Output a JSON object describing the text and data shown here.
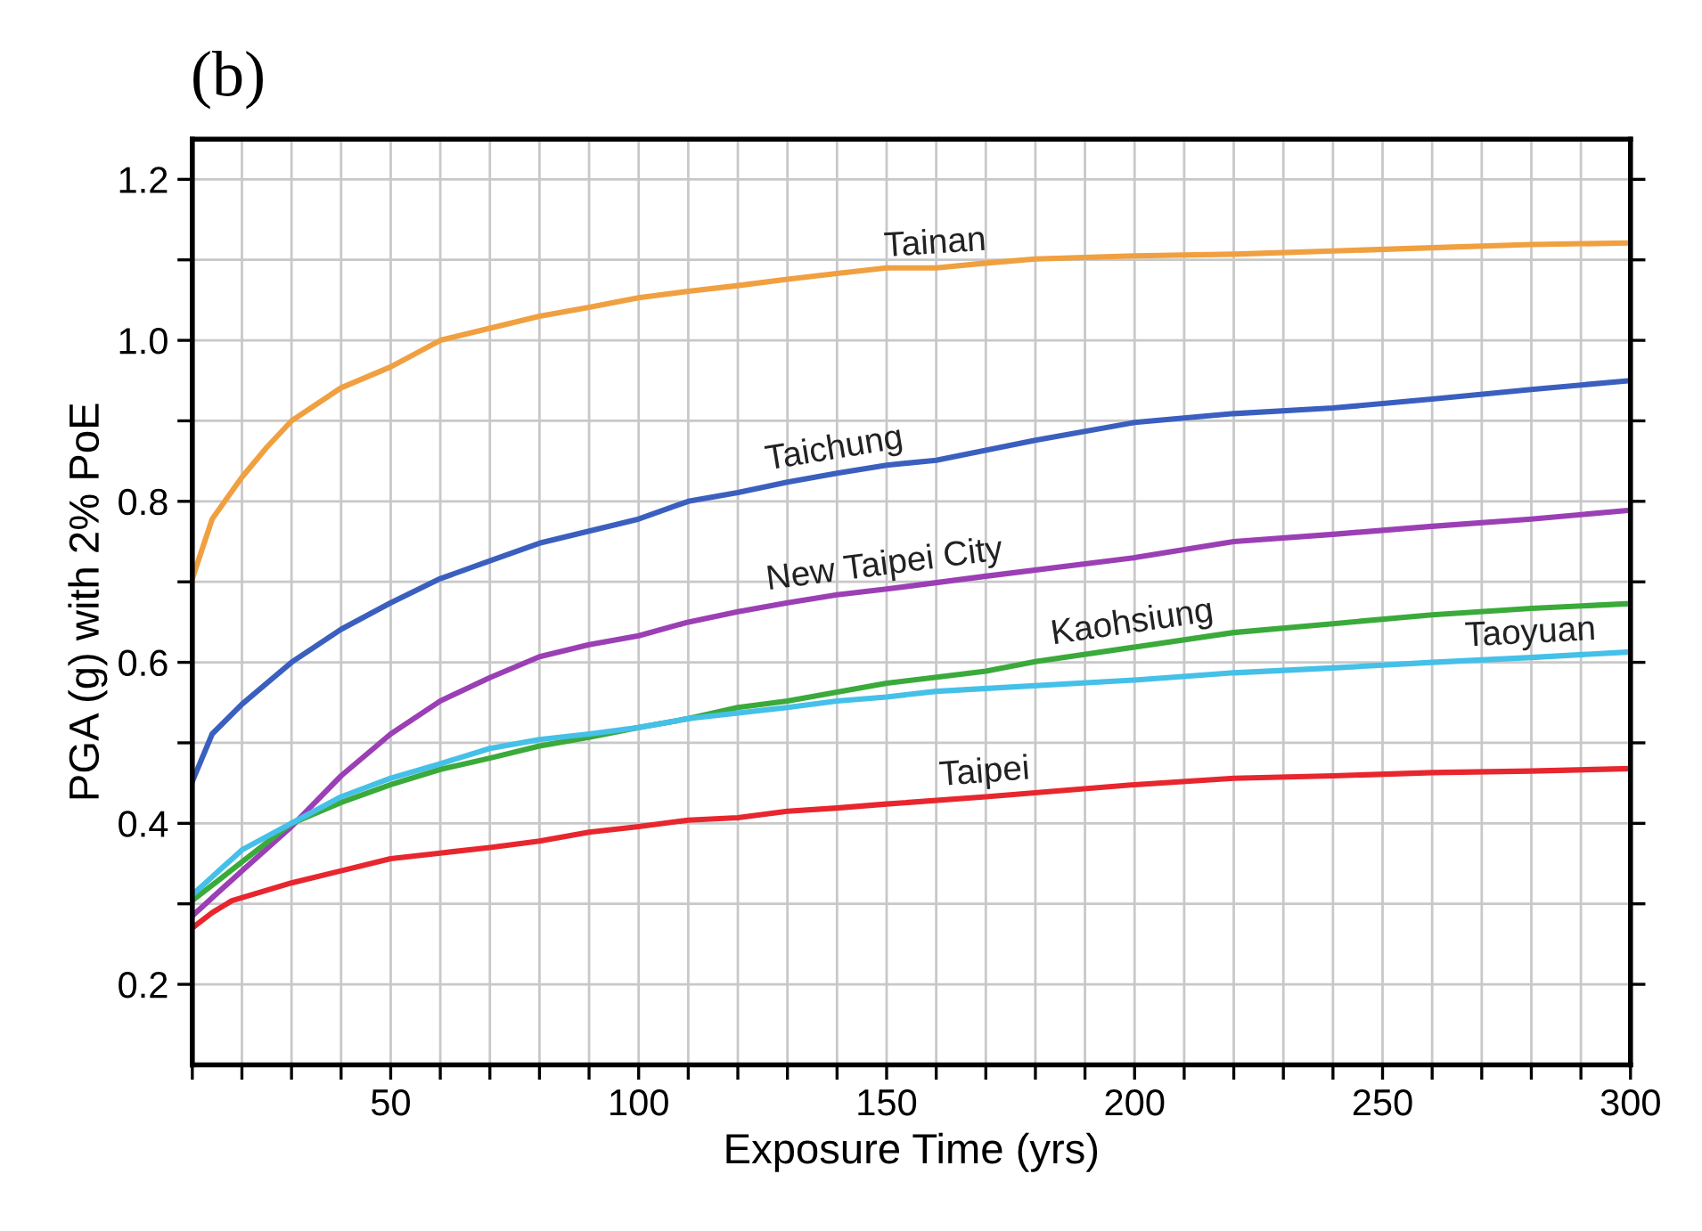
{
  "chart_data": {
    "type": "line",
    "xlabel": "Exposure Time (yrs)",
    "ylabel": "PGA (g) with 2% PoE",
    "xlim": [
      10,
      300
    ],
    "ylim": [
      0.1,
      1.25
    ],
    "xticks": [
      {
        "value": 10,
        "label": null
      },
      {
        "value": 20,
        "label": null
      },
      {
        "value": 30,
        "label": null
      },
      {
        "value": 40,
        "label": null
      },
      50,
      {
        "value": 60,
        "label": null
      },
      {
        "value": 70,
        "label": null
      },
      {
        "value": 80,
        "label": null
      },
      {
        "value": 90,
        "label": null
      },
      100,
      {
        "value": 110,
        "label": null
      },
      {
        "value": 120,
        "label": null
      },
      {
        "value": 130,
        "label": null
      },
      {
        "value": 140,
        "label": null
      },
      150,
      {
        "value": 160,
        "label": null
      },
      {
        "value": 170,
        "label": null
      },
      {
        "value": 180,
        "label": null
      },
      {
        "value": 190,
        "label": null
      },
      200,
      {
        "value": 210,
        "label": null
      },
      {
        "value": 220,
        "label": null
      },
      {
        "value": 230,
        "label": null
      },
      {
        "value": 240,
        "label": null
      },
      250,
      {
        "value": 260,
        "label": null
      },
      {
        "value": 270,
        "label": null
      },
      {
        "value": 280,
        "label": null
      },
      {
        "value": 290,
        "label": null
      },
      300
    ],
    "yticks": [
      0.2,
      {
        "value": 0.3,
        "label": null
      },
      0.4,
      {
        "value": 0.5,
        "label": null
      },
      0.6,
      {
        "value": 0.7,
        "label": null
      },
      0.8,
      {
        "value": 0.9,
        "label": null
      },
      {
        "value": 1.0,
        "label": "1.0"
      },
      {
        "value": 1.1,
        "label": null
      },
      1.2
    ],
    "grid": true,
    "marker": "none",
    "line_style": "solid",
    "series": [
      {
        "color": "#f0a040",
        "x": [
          10,
          14,
          20,
          25,
          30,
          40,
          50,
          60,
          70,
          80,
          90,
          100,
          110,
          120,
          130,
          140,
          150,
          160,
          170,
          180,
          200,
          220,
          240,
          260,
          280,
          300
        ],
        "values": [
          0.704,
          0.778,
          0.83,
          0.867,
          0.9,
          0.941,
          0.967,
          1.0,
          1.015,
          1.03,
          1.041,
          1.053,
          1.061,
          1.068,
          1.076,
          1.083,
          1.09,
          1.09,
          1.096,
          1.101,
          1.105,
          1.107,
          1.111,
          1.115,
          1.119,
          1.121
        ]
      },
      {
        "color": "#3a5fbf",
        "x": [
          10,
          14,
          20,
          30,
          40,
          50,
          60,
          70,
          80,
          90,
          100,
          110,
          120,
          130,
          140,
          150,
          160,
          180,
          200,
          220,
          240,
          260,
          280,
          300
        ],
        "values": [
          0.452,
          0.511,
          0.548,
          0.6,
          0.641,
          0.674,
          0.704,
          0.726,
          0.748,
          0.763,
          0.778,
          0.8,
          0.811,
          0.824,
          0.835,
          0.845,
          0.851,
          0.876,
          0.898,
          0.909,
          0.916,
          0.927,
          0.939,
          0.95
        ]
      },
      {
        "color": "#9b3fb5",
        "x": [
          10,
          20,
          30,
          40,
          50,
          60,
          70,
          80,
          90,
          100,
          110,
          120,
          130,
          140,
          150,
          170,
          200,
          220,
          240,
          260,
          280,
          300
        ],
        "values": [
          0.285,
          0.341,
          0.396,
          0.459,
          0.511,
          0.552,
          0.581,
          0.607,
          0.622,
          0.633,
          0.65,
          0.663,
          0.674,
          0.684,
          0.691,
          0.707,
          0.73,
          0.75,
          0.759,
          0.769,
          0.778,
          0.789
        ]
      },
      {
        "color": "#3aaa3a",
        "x": [
          10,
          20,
          30,
          40,
          50,
          60,
          70,
          80,
          90,
          100,
          110,
          120,
          130,
          140,
          150,
          170,
          180,
          200,
          220,
          240,
          260,
          280,
          300
        ],
        "values": [
          0.304,
          0.352,
          0.4,
          0.426,
          0.448,
          0.467,
          0.481,
          0.496,
          0.507,
          0.519,
          0.53,
          0.544,
          0.552,
          0.563,
          0.574,
          0.589,
          0.601,
          0.619,
          0.637,
          0.648,
          0.659,
          0.667,
          0.673
        ]
      },
      {
        "color": "#45c0e8",
        "x": [
          10,
          20,
          30,
          40,
          50,
          60,
          70,
          80,
          90,
          100,
          110,
          120,
          130,
          140,
          150,
          160,
          200,
          220,
          240,
          260,
          280,
          300
        ],
        "values": [
          0.311,
          0.367,
          0.4,
          0.433,
          0.456,
          0.474,
          0.493,
          0.504,
          0.511,
          0.519,
          0.53,
          0.537,
          0.544,
          0.552,
          0.557,
          0.564,
          0.578,
          0.587,
          0.593,
          0.6,
          0.606,
          0.613
        ]
      },
      {
        "color": "#e8262e",
        "x": [
          10,
          14,
          18,
          30,
          40,
          50,
          60,
          70,
          80,
          90,
          100,
          110,
          120,
          130,
          140,
          150,
          170,
          200,
          220,
          240,
          260,
          280,
          300
        ],
        "values": [
          0.27,
          0.289,
          0.304,
          0.326,
          0.341,
          0.356,
          0.363,
          0.37,
          0.378,
          0.389,
          0.396,
          0.404,
          0.407,
          0.415,
          0.419,
          0.424,
          0.433,
          0.448,
          0.456,
          0.459,
          0.463,
          0.465,
          0.468
        ]
      }
    ],
    "annotations": [
      "(b)",
      {
        "text": "Tainan",
        "x": 160,
        "y": 1.09
      },
      {
        "text": "Taichung",
        "x": 140,
        "y": 0.835
      },
      {
        "text": "New Taipei City",
        "x": 150,
        "y": 0.691
      },
      {
        "text": "Kaohsiung",
        "x": 200,
        "y": 0.619
      },
      {
        "text": "Taoyuan",
        "x": 280,
        "y": 0.606
      },
      {
        "text": "Taipei",
        "x": 170,
        "y": 0.433
      }
    ]
  }
}
